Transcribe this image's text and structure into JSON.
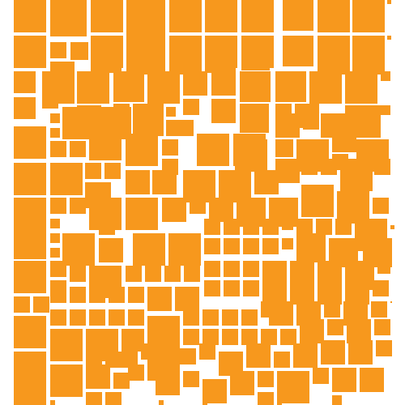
{
  "colors": {
    "background": "#ffffff",
    "tile": "#f7981d"
  },
  "pattern": {
    "shape": "square",
    "name": "orange-square-mosaic"
  }
}
